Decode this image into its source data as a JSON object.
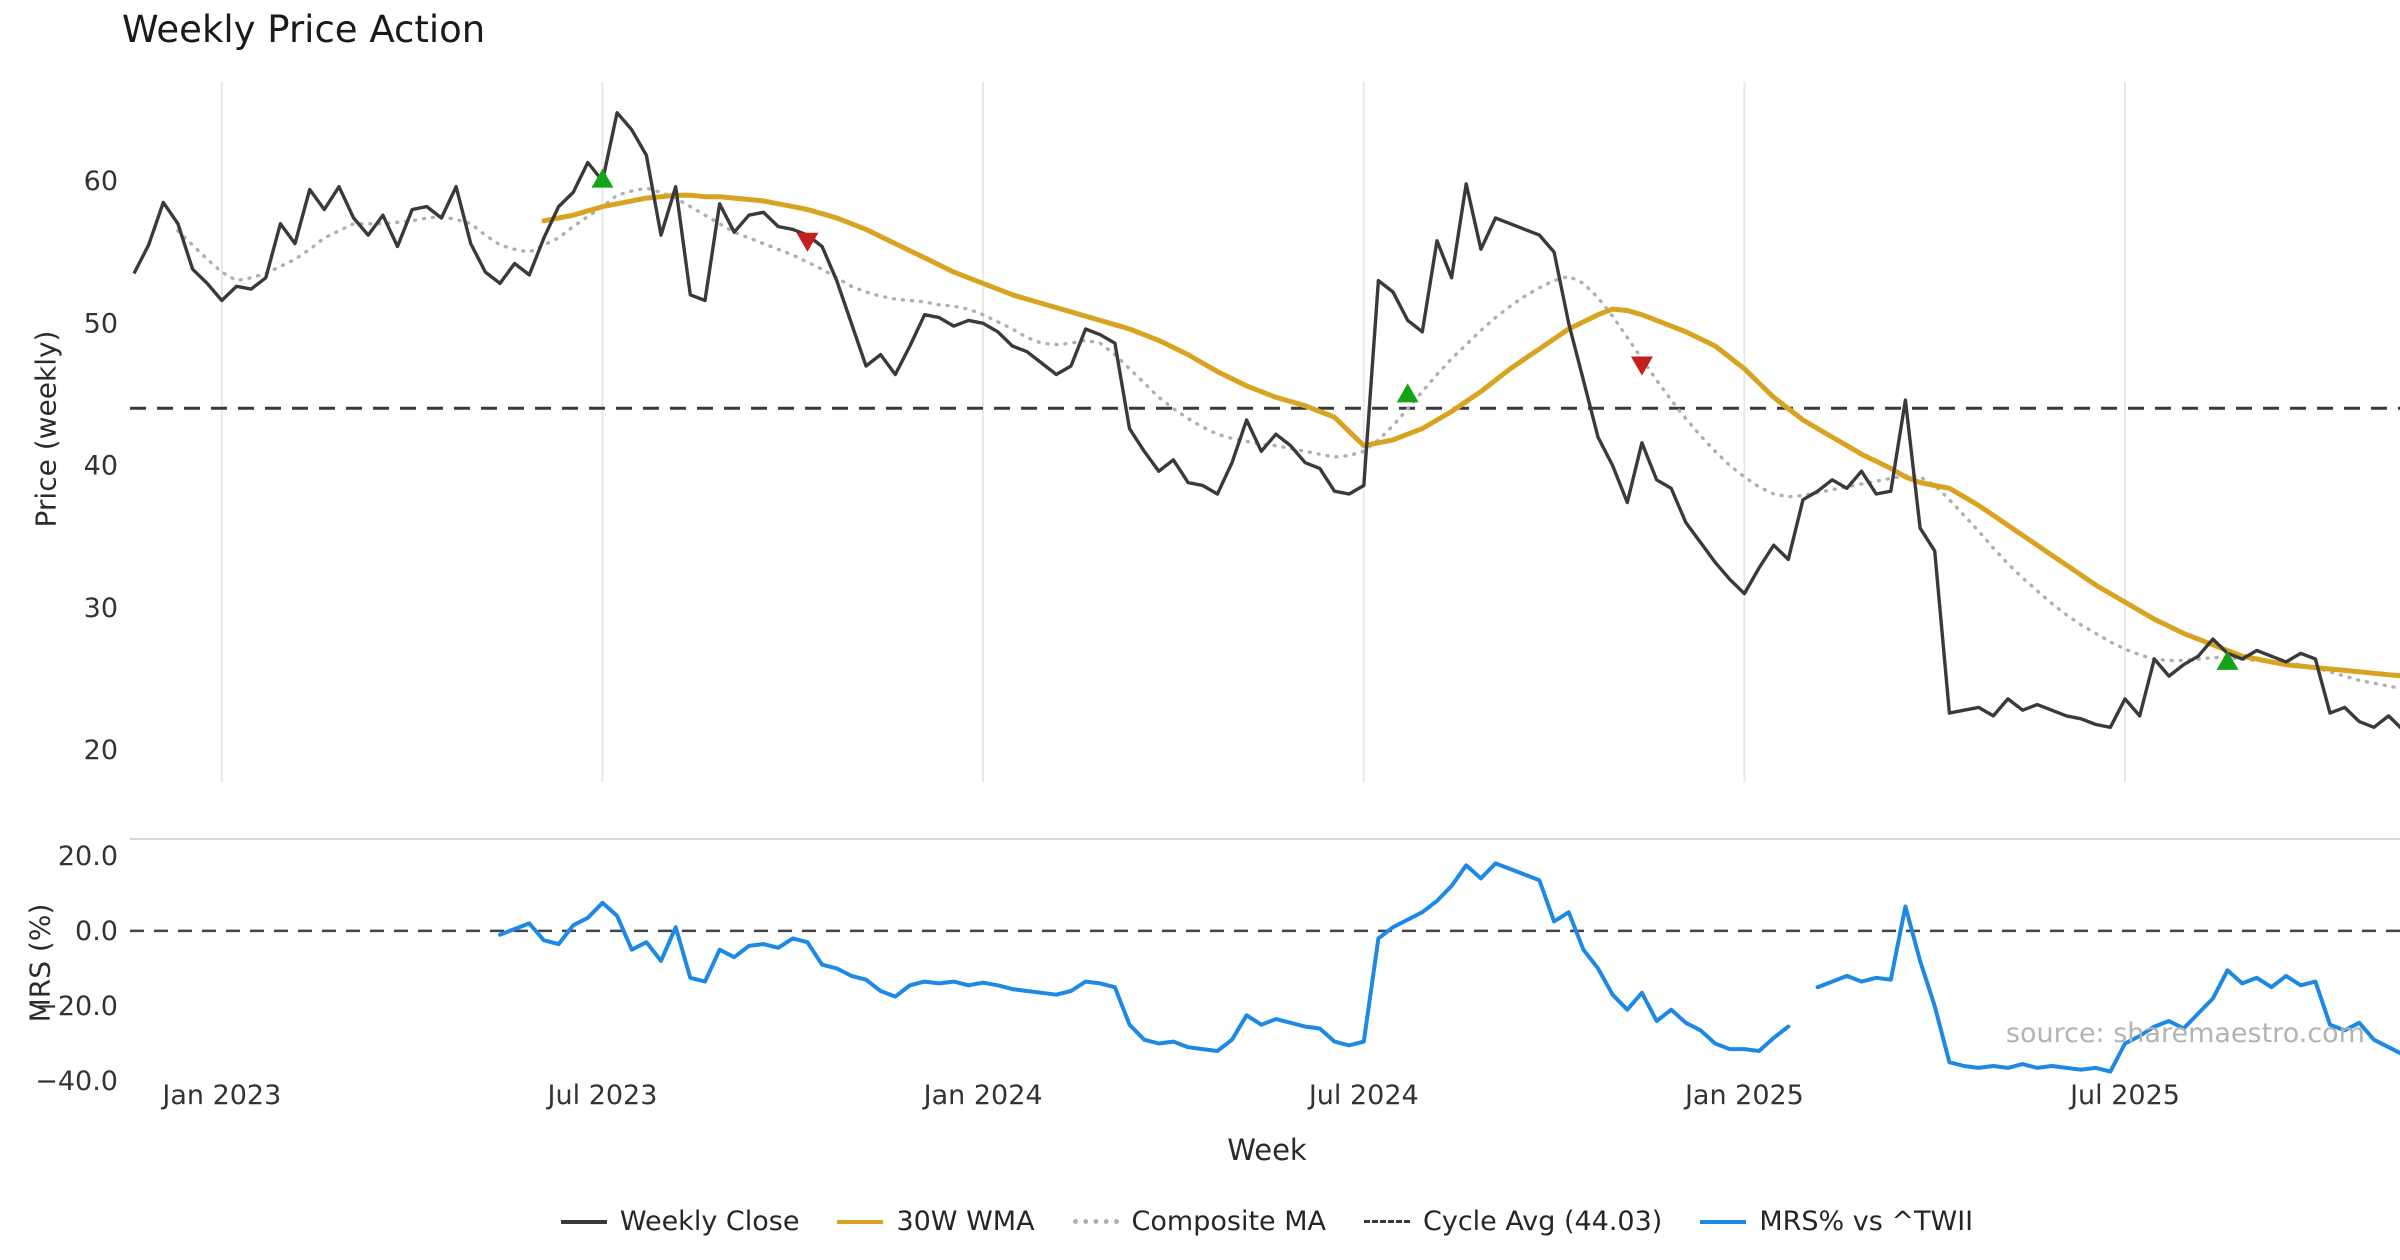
{
  "title": "Weekly Price Action",
  "watermark": "source: sharemaestro.com",
  "axes": {
    "price_ylabel": "Price (weekly)",
    "mrs_ylabel": "MRS (%)",
    "xlabel": "Week"
  },
  "legend": [
    {
      "id": "weekly-close",
      "label": "Weekly Close",
      "style": "solid",
      "color": "#3a3a3a"
    },
    {
      "id": "wma-30w",
      "label": "30W WMA",
      "style": "solid",
      "color": "#d7a321"
    },
    {
      "id": "composite-ma",
      "label": "Composite MA",
      "style": "dotted",
      "color": "#b0b0b0"
    },
    {
      "id": "cycle-avg",
      "label": "Cycle Avg (44.03)",
      "style": "dashed",
      "color": "#3a3a3a"
    },
    {
      "id": "mrs",
      "label": "MRS% vs ^TWII",
      "style": "solid",
      "color": "#1e88e5"
    }
  ],
  "chart_data": {
    "type": "line",
    "title": "Weekly Price Action",
    "xlabel": "Week",
    "x_unit": "week_index",
    "x_ticks": [
      {
        "index": 6,
        "label": "Jan 2023"
      },
      {
        "index": 32,
        "label": "Jul 2023"
      },
      {
        "index": 58,
        "label": "Jan 2024"
      },
      {
        "index": 84,
        "label": "Jul 2024"
      },
      {
        "index": 110,
        "label": "Jan 2025"
      },
      {
        "index": 136,
        "label": "Jul 2025"
      }
    ],
    "panels": [
      {
        "name": "price",
        "ylabel": "Price (weekly)",
        "ylim": [
          18.6,
          67.1
        ],
        "yticks": [
          60,
          50,
          40,
          30,
          20
        ],
        "cycle_avg": 44.03,
        "series": [
          {
            "name": "Weekly Close",
            "color": "#3a3a3a",
            "style": "solid",
            "values": [
              53.5,
              55.5,
              58.5,
              57.0,
              53.8,
              52.8,
              51.6,
              52.6,
              52.4,
              53.2,
              57.0,
              55.6,
              59.4,
              58.0,
              59.6,
              57.4,
              56.2,
              57.6,
              55.4,
              58.0,
              58.2,
              57.4,
              59.6,
              55.6,
              53.6,
              52.8,
              54.2,
              53.4,
              56.0,
              58.2,
              59.2,
              61.3,
              60.0,
              64.8,
              63.6,
              61.8,
              56.2,
              59.6,
              52.0,
              51.6,
              58.4,
              56.4,
              57.6,
              57.8,
              56.8,
              56.6,
              56.2,
              55.4,
              53.0,
              50.0,
              47.0,
              47.8,
              46.4,
              48.4,
              50.6,
              50.4,
              49.8,
              50.2,
              50.0,
              49.4,
              48.4,
              48.0,
              47.2,
              46.4,
              47.0,
              49.6,
              49.2,
              48.6,
              42.6,
              41.0,
              39.6,
              40.4,
              38.8,
              38.6,
              38.0,
              40.2,
              43.2,
              41.0,
              42.2,
              41.4,
              40.2,
              39.8,
              38.2,
              38.0,
              38.6,
              53.0,
              52.2,
              50.2,
              49.4,
              55.8,
              53.2,
              59.8,
              55.2,
              57.4,
              57.0,
              56.6,
              56.2,
              55.0,
              50.0,
              46.0,
              42.0,
              40.0,
              37.4,
              41.6,
              39.0,
              38.4,
              36.0,
              34.6,
              33.2,
              32.0,
              31.0,
              32.8,
              34.4,
              33.4,
              37.6,
              38.2,
              39.0,
              38.4,
              39.6,
              38.0,
              38.2,
              44.6,
              35.6,
              34.0,
              22.6,
              22.8,
              23.0,
              22.4,
              23.6,
              22.8,
              23.2,
              22.8,
              22.4,
              22.2,
              21.8,
              21.6,
              23.6,
              22.4,
              26.4,
              25.2,
              26.0,
              26.6,
              27.8,
              26.8,
              26.4,
              27.0,
              26.6,
              26.2,
              26.8,
              26.4,
              22.6,
              23.0,
              22.0,
              21.6,
              22.4,
              21.4
            ]
          },
          {
            "name": "30W WMA",
            "color": "#d7a321",
            "style": "solid",
            "values": [
              null,
              null,
              null,
              null,
              null,
              null,
              null,
              null,
              null,
              null,
              null,
              null,
              null,
              null,
              null,
              null,
              null,
              null,
              null,
              null,
              null,
              null,
              null,
              null,
              null,
              null,
              null,
              null,
              57.2,
              57.4,
              57.6,
              57.9,
              58.2,
              58.4,
              58.6,
              58.8,
              58.9,
              59.0,
              59.0,
              58.9,
              58.9,
              58.8,
              58.7,
              58.6,
              58.4,
              58.2,
              58.0,
              57.7,
              57.4,
              57.0,
              56.6,
              56.1,
              55.6,
              55.1,
              54.6,
              54.1,
              53.6,
              53.2,
              52.8,
              52.4,
              52.0,
              51.7,
              51.4,
              51.1,
              50.8,
              50.5,
              50.2,
              49.9,
              49.6,
              49.2,
              48.8,
              48.3,
              47.8,
              47.2,
              46.6,
              46.1,
              45.6,
              45.2,
              44.8,
              44.5,
              44.2,
              43.8,
              43.4,
              42.4,
              41.4,
              41.6,
              41.8,
              42.2,
              42.6,
              43.2,
              43.8,
              44.5,
              45.2,
              46.0,
              46.8,
              47.5,
              48.2,
              48.9,
              49.6,
              50.1,
              50.6,
              51.0,
              50.9,
              50.6,
              50.2,
              49.8,
              49.4,
              48.9,
              48.4,
              47.6,
              46.8,
              45.8,
              44.8,
              44.0,
              43.2,
              42.6,
              42.0,
              41.4,
              40.8,
              40.3,
              39.8,
              39.2,
              38.8,
              38.6,
              38.4,
              37.8,
              37.2,
              36.5,
              35.8,
              35.1,
              34.4,
              33.7,
              33.0,
              32.3,
              31.6,
              31.0,
              30.4,
              29.8,
              29.2,
              28.7,
              28.2,
              27.8,
              27.4,
              27.0,
              26.6,
              26.4,
              26.2,
              26.0,
              25.9,
              25.8,
              25.7,
              25.6,
              25.5,
              25.4,
              25.3,
              25.2
            ]
          },
          {
            "name": "Composite MA",
            "color": "#b0b0b0",
            "style": "dotted",
            "values": [
              null,
              null,
              null,
              56.5,
              55.5,
              54.5,
              53.6,
              53.0,
              53.2,
              53.5,
              54.0,
              54.5,
              55.2,
              56.0,
              56.5,
              57.0,
              57.0,
              57.0,
              57.1,
              57.2,
              57.4,
              57.5,
              57.3,
              57.0,
              56.2,
              55.5,
              55.2,
              55.0,
              55.5,
              56.0,
              56.8,
              57.5,
              58.2,
              59.0,
              59.3,
              59.5,
              59.2,
              58.8,
              58.2,
              57.6,
              57.0,
              56.4,
              56.0,
              55.6,
              55.2,
              54.8,
              54.3,
              53.8,
              53.2,
              52.6,
              52.2,
              51.9,
              51.7,
              51.6,
              51.5,
              51.3,
              51.2,
              51.0,
              50.6,
              50.1,
              49.6,
              49.0,
              48.6,
              48.5,
              48.6,
              48.8,
              48.6,
              47.8,
              46.8,
              45.8,
              44.8,
              44.0,
              43.3,
              42.7,
              42.2,
              41.9,
              41.7,
              41.5,
              41.4,
              41.2,
              41.0,
              40.8,
              40.6,
              40.7,
              41.0,
              41.8,
              42.8,
              44.0,
              45.2,
              46.4,
              47.5,
              48.5,
              49.5,
              50.4,
              51.2,
              51.9,
              52.5,
              53.0,
              53.3,
              52.8,
              51.8,
              50.5,
              49.0,
              47.5,
              46.0,
              44.6,
              43.3,
              42.1,
              41.0,
              40.0,
              39.2,
              38.5,
              38.0,
              37.8,
              37.9,
              38.1,
              38.3,
              38.5,
              38.7,
              38.9,
              39.1,
              39.3,
              39.2,
              38.6,
              37.6,
              36.5,
              35.4,
              34.2,
              33.1,
              32.1,
              31.2,
              30.3,
              29.5,
              28.8,
              28.2,
              27.6,
              27.1,
              26.7,
              26.4,
              26.3,
              26.3,
              26.4,
              26.5,
              26.5,
              26.4,
              26.3,
              26.2,
              26.1,
              26.0,
              25.8,
              25.5,
              25.2,
              24.9,
              24.7,
              24.5,
              24.3
            ]
          }
        ],
        "signals": {
          "buy": [
            {
              "index": 32,
              "price": 60.1
            },
            {
              "index": 87,
              "price": 45.0
            },
            {
              "index": 143,
              "price": 26.2
            }
          ],
          "sell": [
            {
              "index": 46,
              "price": 55.8
            },
            {
              "index": 103,
              "price": 47.1
            }
          ]
        }
      },
      {
        "name": "mrs",
        "ylabel": "MRS (%)",
        "ylim": [
          -41.6,
          24.5
        ],
        "yticks": [
          20.0,
          0.0,
          -20.0,
          -40.0
        ],
        "zero_line": 0,
        "series": [
          {
            "name": "MRS% vs ^TWII",
            "color": "#1e88e5",
            "style": "solid",
            "values": [
              null,
              null,
              null,
              null,
              null,
              null,
              null,
              null,
              null,
              null,
              null,
              null,
              null,
              null,
              null,
              null,
              null,
              null,
              null,
              null,
              null,
              null,
              null,
              null,
              null,
              -1.0,
              0.5,
              2.0,
              -2.5,
              -3.5,
              1.5,
              3.5,
              7.5,
              4.0,
              -5.0,
              -3.0,
              -8.0,
              1.0,
              -12.5,
              -13.5,
              -5.0,
              -7.0,
              -4.0,
              -3.5,
              -4.5,
              -2.0,
              -3.0,
              -9.0,
              -10.0,
              -12.0,
              -13.0,
              -16.0,
              -17.5,
              -14.5,
              -13.5,
              -14.0,
              -13.5,
              -14.5,
              -13.8,
              -14.5,
              -15.5,
              -16.0,
              -16.5,
              -17.0,
              -16.0,
              -13.5,
              -14.0,
              -15.0,
              -25.0,
              -29.0,
              -30.0,
              -29.5,
              -31.0,
              -31.5,
              -32.0,
              -29.0,
              -22.5,
              -25.0,
              -23.5,
              -24.5,
              -25.5,
              -26.0,
              -29.5,
              -30.5,
              -29.5,
              -2.0,
              1.0,
              3.0,
              5.0,
              8.0,
              12.0,
              17.5,
              14.0,
              18.0,
              16.5,
              15.0,
              13.5,
              2.5,
              5.0,
              -5.0,
              -10.0,
              -17.0,
              -21.0,
              -16.5,
              -24.0,
              -21.0,
              -24.5,
              -26.5,
              -30.0,
              -31.5,
              -31.5,
              -32.0,
              -28.5,
              -25.5,
              null,
              -15.0,
              -13.5,
              -12.0,
              -13.5,
              -12.5,
              -13.0,
              6.5,
              -8.0,
              -20.0,
              -35.0,
              -36.0,
              -36.5,
              -36.0,
              -36.5,
              -35.5,
              -36.5,
              -36.0,
              -36.5,
              -37.0,
              -36.5,
              -37.5,
              -30.0,
              -28.0,
              -25.5,
              -24.0,
              -26.0,
              -22.0,
              -18.0,
              -10.5,
              -14.0,
              -12.5,
              -15.0,
              -12.0,
              -14.5,
              -13.5,
              -25.0,
              -26.5,
              -24.5,
              -29.0,
              -31.0,
              -33.0
            ]
          }
        ]
      }
    ]
  }
}
